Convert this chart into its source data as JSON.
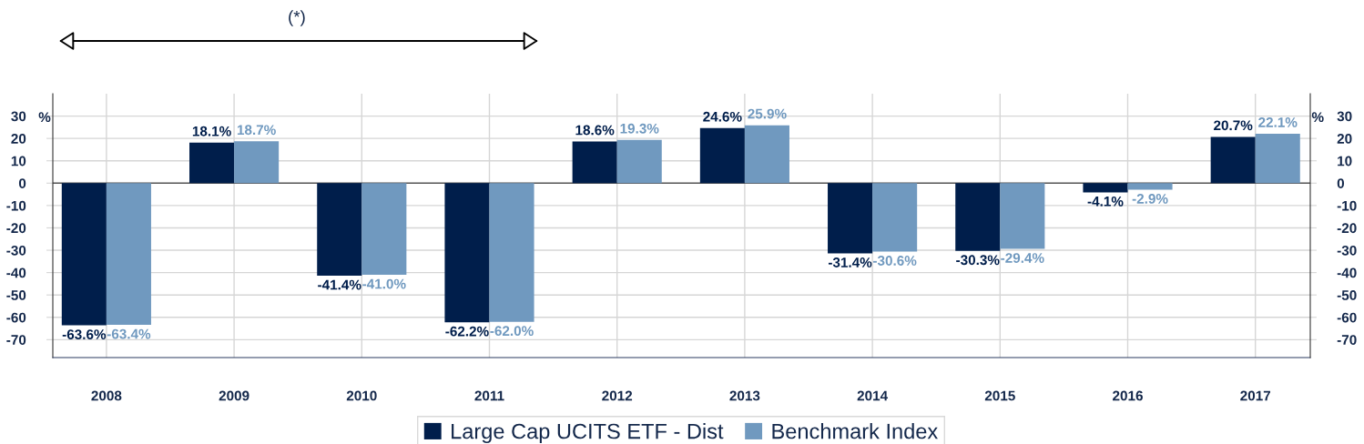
{
  "chart_data": {
    "type": "bar",
    "categories": [
      "2008",
      "2009",
      "2010",
      "2011",
      "2012",
      "2013",
      "2014",
      "2015",
      "2016",
      "2017"
    ],
    "series": [
      {
        "name": "Large Cap UCITS ETF - Dist",
        "color": "#001e4b",
        "values": [
          -63.6,
          18.1,
          -41.4,
          -62.2,
          18.6,
          24.6,
          -31.4,
          -30.3,
          -4.1,
          20.7
        ],
        "value_labels": [
          "-63.6%",
          "18.1%",
          "-41.4%",
          "-62.2%",
          "18.6%",
          "24.6%",
          "-31.4%",
          "-30.3%",
          "-4.1%",
          "20.7%"
        ]
      },
      {
        "name": "Benchmark Index",
        "color": "#7099bf",
        "values": [
          -63.4,
          18.7,
          -41.0,
          -62.0,
          19.3,
          25.9,
          -30.6,
          -29.4,
          -2.9,
          22.1
        ],
        "value_labels": [
          "-63.4%",
          "18.7%",
          "-41.0%",
          "-62.0%",
          "19.3%",
          "25.9%",
          "-30.6%",
          "-29.4%",
          "-2.9%",
          "22.1%"
        ]
      }
    ],
    "ylim": [
      -78,
      40
    ],
    "yticks": [
      -70,
      -60,
      -50,
      -40,
      -30,
      -20,
      -10,
      0,
      10,
      20,
      30
    ],
    "y2lim": [
      -78,
      40
    ],
    "y2ticks": [
      -70,
      -60,
      -50,
      -40,
      -30,
      -20,
      -10,
      0,
      10,
      20,
      30
    ],
    "ylabel": "%",
    "y2label": "%",
    "grid": true,
    "legend": "bottom",
    "annotations": [
      "(*)"
    ]
  }
}
